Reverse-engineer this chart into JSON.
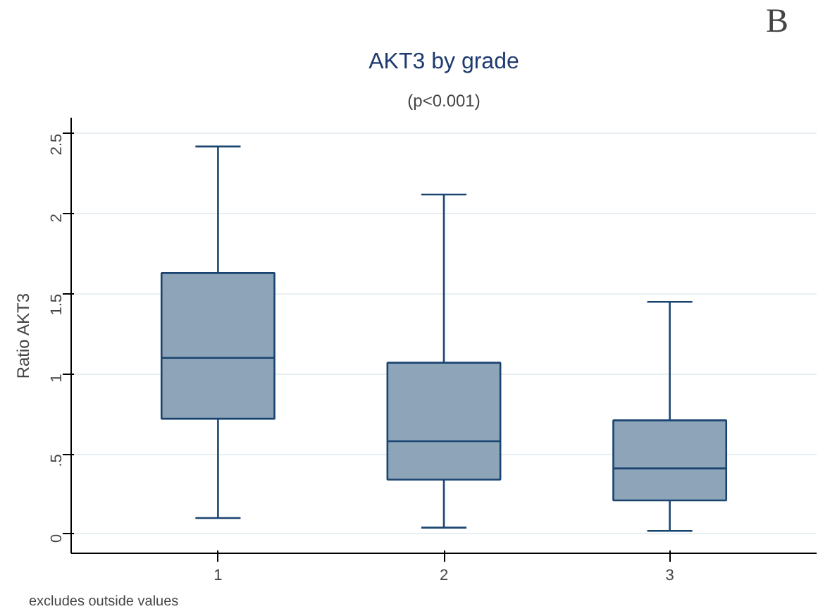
{
  "chart_data": {
    "type": "box",
    "title": "AKT3 by grade",
    "subtitle": "(p<0.001)",
    "ylabel": "Ratio AKT3",
    "categories": [
      "1",
      "2",
      "3"
    ],
    "boxes": [
      {
        "low": 0.1,
        "q1": 0.72,
        "median": 1.1,
        "q3": 1.63,
        "high": 2.42
      },
      {
        "low": 0.04,
        "q1": 0.34,
        "median": 0.58,
        "q3": 1.07,
        "high": 2.12
      },
      {
        "low": 0.02,
        "q1": 0.21,
        "median": 0.41,
        "q3": 0.71,
        "high": 1.45
      }
    ],
    "color": "#8ea4b8",
    "ylim": [
      -0.12,
      2.6
    ],
    "yticks": [
      0,
      {
        "value": 0.5,
        "label": ".5"
      },
      1,
      1.5,
      2,
      2.5
    ],
    "grid": "y",
    "annotations": [
      "B",
      "excludes outside values"
    ]
  }
}
